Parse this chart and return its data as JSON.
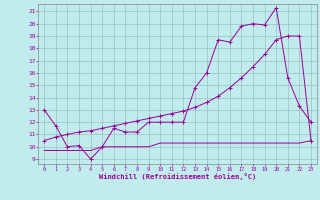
{
  "xlabel": "Windchill (Refroidissement éolien,°C)",
  "background_color": "#c0ecee",
  "grid_color": "#9bbfc2",
  "line_color": "#990099",
  "xmin": -0.5,
  "xmax": 23.5,
  "ymin": 8.6,
  "ymax": 21.6,
  "yticks": [
    9,
    10,
    11,
    12,
    13,
    14,
    15,
    16,
    17,
    18,
    19,
    20,
    21
  ],
  "xticks": [
    0,
    1,
    2,
    3,
    4,
    5,
    6,
    7,
    8,
    9,
    10,
    11,
    12,
    13,
    14,
    15,
    16,
    17,
    18,
    19,
    20,
    21,
    22,
    23
  ],
  "line1_x": [
    0,
    1,
    2,
    3,
    4,
    5,
    6,
    7,
    8,
    9,
    10,
    11,
    12,
    13,
    14,
    15,
    16,
    17,
    18,
    19,
    20,
    21,
    22,
    23
  ],
  "line1_y": [
    13.0,
    11.7,
    10.0,
    10.1,
    9.0,
    10.0,
    11.5,
    11.2,
    11.2,
    12.0,
    12.0,
    12.0,
    12.0,
    14.8,
    16.0,
    18.7,
    18.5,
    19.8,
    20.0,
    19.9,
    21.3,
    15.6,
    13.3,
    12.0
  ],
  "line2_x": [
    0,
    1,
    2,
    3,
    4,
    5,
    6,
    7,
    8,
    9,
    10,
    11,
    12,
    13,
    14,
    15,
    16,
    17,
    18,
    19,
    20,
    21,
    22,
    23
  ],
  "line2_y": [
    9.7,
    9.7,
    9.7,
    9.7,
    9.7,
    10.0,
    10.0,
    10.0,
    10.0,
    10.0,
    10.3,
    10.3,
    10.3,
    10.3,
    10.3,
    10.3,
    10.3,
    10.3,
    10.3,
    10.3,
    10.3,
    10.3,
    10.3,
    10.5
  ],
  "line3_x": [
    0,
    1,
    2,
    3,
    4,
    5,
    6,
    7,
    8,
    9,
    10,
    11,
    12,
    13,
    14,
    15,
    16,
    17,
    18,
    19,
    20,
    21,
    22,
    23
  ],
  "line3_y": [
    10.5,
    10.8,
    11.0,
    11.2,
    11.3,
    11.5,
    11.7,
    11.9,
    12.1,
    12.3,
    12.5,
    12.7,
    12.9,
    13.2,
    13.6,
    14.1,
    14.8,
    15.6,
    16.5,
    17.5,
    18.7,
    19.0,
    19.0,
    10.5
  ]
}
